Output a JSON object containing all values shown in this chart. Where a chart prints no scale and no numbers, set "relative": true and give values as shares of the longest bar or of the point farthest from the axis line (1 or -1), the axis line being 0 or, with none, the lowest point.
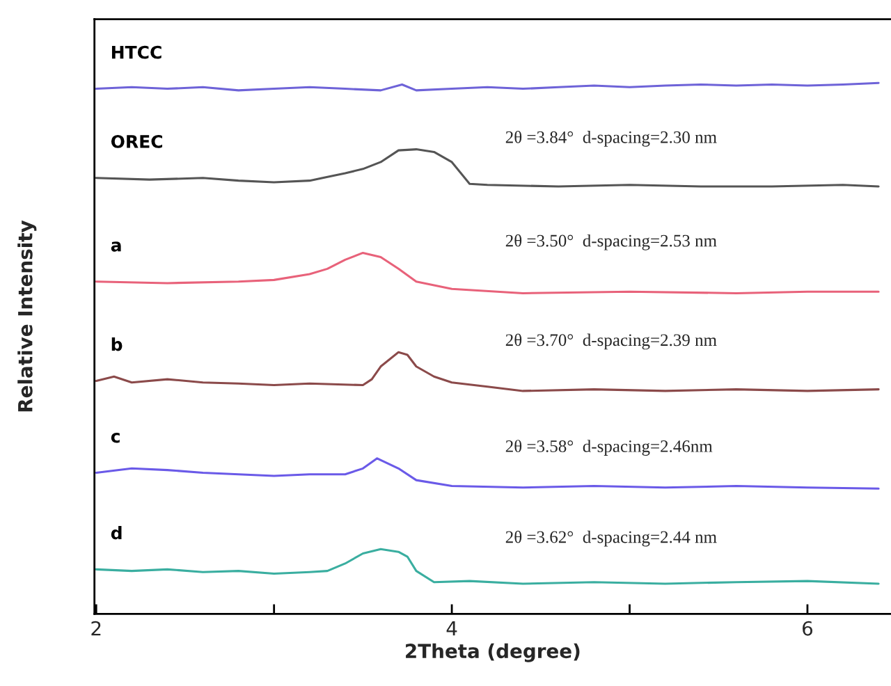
{
  "chart_data": {
    "type": "line",
    "relative": true,
    "xlabel": "2Theta (degree)",
    "ylabel": "Relative Intensity",
    "xlim": [
      1.99,
      6.47
    ],
    "xticks": [
      2,
      {
        "value": 3,
        "label": null
      },
      4,
      {
        "value": 5,
        "label": null
      },
      6
    ],
    "grid": false,
    "legend": false,
    "marker": "none",
    "line_style": "solid",
    "series": [
      {
        "name": "HTCC",
        "color": "#6e63d8",
        "x": [
          2.0,
          2.2,
          2.4,
          2.6,
          2.8,
          3.0,
          3.2,
          3.4,
          3.6,
          3.72,
          3.8,
          4.0,
          4.2,
          4.4,
          4.6,
          4.8,
          5.0,
          5.2,
          5.4,
          5.6,
          5.8,
          6.0,
          6.2,
          6.4
        ],
        "values": [
          0.989,
          0.992,
          0.989,
          0.992,
          0.986,
          0.989,
          0.992,
          0.989,
          0.986,
          0.997,
          0.986,
          0.989,
          0.992,
          0.989,
          0.992,
          0.995,
          0.992,
          0.995,
          0.997,
          0.995,
          0.997,
          0.995,
          0.997,
          1.0
        ]
      },
      {
        "name": "OREC",
        "color": "#555555",
        "x": [
          2.0,
          2.3,
          2.6,
          2.8,
          3.0,
          3.2,
          3.4,
          3.5,
          3.6,
          3.7,
          3.8,
          3.9,
          4.0,
          4.1,
          4.2,
          4.6,
          5.0,
          5.4,
          5.8,
          6.2,
          6.4
        ],
        "values": [
          0.821,
          0.818,
          0.821,
          0.816,
          0.813,
          0.816,
          0.83,
          0.838,
          0.851,
          0.873,
          0.875,
          0.87,
          0.851,
          0.81,
          0.808,
          0.805,
          0.808,
          0.805,
          0.805,
          0.808,
          0.805
        ]
      },
      {
        "name": "a",
        "color": "#e8627a",
        "x": [
          2.0,
          2.4,
          2.8,
          3.0,
          3.2,
          3.3,
          3.4,
          3.5,
          3.6,
          3.7,
          3.8,
          4.0,
          4.4,
          5.0,
          5.6,
          6.0,
          6.4
        ],
        "values": [
          0.626,
          0.623,
          0.626,
          0.629,
          0.64,
          0.65,
          0.667,
          0.68,
          0.672,
          0.65,
          0.626,
          0.612,
          0.604,
          0.607,
          0.604,
          0.607,
          0.607
        ]
      },
      {
        "name": "b",
        "color": "#8b4a4a",
        "x": [
          2.0,
          2.1,
          2.2,
          2.4,
          2.6,
          2.8,
          3.0,
          3.2,
          3.5,
          3.55,
          3.6,
          3.7,
          3.75,
          3.8,
          3.9,
          4.0,
          4.2,
          4.4,
          4.8,
          5.2,
          5.6,
          6.0,
          6.4
        ],
        "values": [
          0.439,
          0.447,
          0.436,
          0.442,
          0.436,
          0.434,
          0.431,
          0.434,
          0.431,
          0.442,
          0.466,
          0.493,
          0.488,
          0.466,
          0.447,
          0.436,
          0.428,
          0.42,
          0.423,
          0.42,
          0.423,
          0.42,
          0.423
        ]
      },
      {
        "name": "c",
        "color": "#6a5ae8",
        "x": [
          2.0,
          2.2,
          2.4,
          2.6,
          2.8,
          3.0,
          3.2,
          3.4,
          3.5,
          3.58,
          3.7,
          3.8,
          4.0,
          4.4,
          4.8,
          5.2,
          5.6,
          6.0,
          6.4
        ],
        "values": [
          0.266,
          0.274,
          0.271,
          0.266,
          0.263,
          0.26,
          0.263,
          0.263,
          0.274,
          0.293,
          0.274,
          0.252,
          0.241,
          0.238,
          0.241,
          0.238,
          0.241,
          0.238,
          0.236
        ]
      },
      {
        "name": "d",
        "color": "#3aaea0",
        "x": [
          2.0,
          2.2,
          2.4,
          2.6,
          2.8,
          3.0,
          3.2,
          3.3,
          3.4,
          3.5,
          3.6,
          3.7,
          3.75,
          3.8,
          3.9,
          4.1,
          4.4,
          4.8,
          5.2,
          5.6,
          6.0,
          6.4
        ],
        "values": [
          0.084,
          0.081,
          0.084,
          0.079,
          0.081,
          0.076,
          0.079,
          0.081,
          0.095,
          0.114,
          0.122,
          0.117,
          0.108,
          0.081,
          0.06,
          0.062,
          0.057,
          0.06,
          0.057,
          0.06,
          0.062,
          0.057
        ]
      }
    ],
    "annotations": [
      "2θ =3.84°  d-spacing=2.30 nm",
      "2θ =3.50°  d-spacing=2.53 nm",
      "2θ =3.70°  d-spacing=2.39 nm",
      "2θ =3.58°  d-spacing=2.46nm",
      "2θ =3.62°  d-spacing=2.44 nm"
    ]
  }
}
